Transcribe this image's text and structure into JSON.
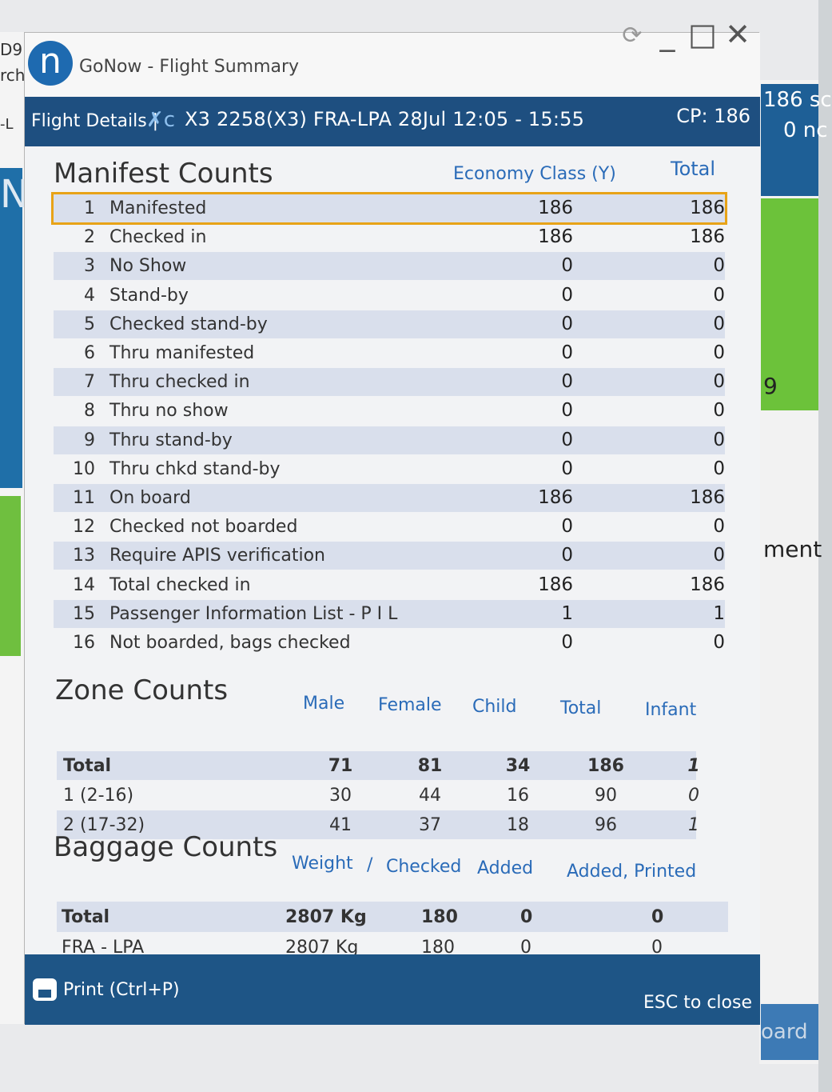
{
  "background": {
    "left_labels": [
      "D9",
      "rch",
      "-L",
      "N"
    ],
    "right_labels": [
      "186 sc",
      "0 nc",
      "9",
      "ment",
      "oard"
    ]
  },
  "window": {
    "logo_letter": "n",
    "title": "GoNow - Flight Summary",
    "controls": [
      "⟳",
      "_",
      "□",
      "✕"
    ]
  },
  "header": {
    "section": "Flight Details |",
    "airline_icon": "✗c",
    "flight": "X3 2258(X3)  FRA-LPA  28Jul 12:05 - 15:55",
    "cp": "CP: 186"
  },
  "manifest": {
    "title": "Manifest Counts",
    "col_class": "Economy Class (Y)",
    "col_total": "Total",
    "rows": [
      {
        "num": "1",
        "label": "Manifested",
        "y": "186",
        "total": "186"
      },
      {
        "num": "2",
        "label": "Checked in",
        "y": "186",
        "total": "186"
      },
      {
        "num": "3",
        "label": "No Show",
        "y": "0",
        "total": "0"
      },
      {
        "num": "4",
        "label": "Stand-by",
        "y": "0",
        "total": "0"
      },
      {
        "num": "5",
        "label": "Checked stand-by",
        "y": "0",
        "total": "0"
      },
      {
        "num": "6",
        "label": "Thru manifested",
        "y": "0",
        "total": "0"
      },
      {
        "num": "7",
        "label": "Thru checked in",
        "y": "0",
        "total": "0"
      },
      {
        "num": "8",
        "label": "Thru no show",
        "y": "0",
        "total": "0"
      },
      {
        "num": "9",
        "label": "Thru stand-by",
        "y": "0",
        "total": "0"
      },
      {
        "num": "10",
        "label": "Thru chkd stand-by",
        "y": "0",
        "total": "0"
      },
      {
        "num": "11",
        "label": "On board",
        "y": "186",
        "total": "186"
      },
      {
        "num": "12",
        "label": "Checked not boarded",
        "y": "0",
        "total": "0"
      },
      {
        "num": "13",
        "label": "Require APIS verification",
        "y": "0",
        "total": "0"
      },
      {
        "num": "14",
        "label": "Total checked in",
        "y": "186",
        "total": "186"
      },
      {
        "num": "15",
        "label": "Passenger Information List - P I L",
        "y": "1",
        "total": "1"
      },
      {
        "num": "16",
        "label": "Not boarded, bags checked",
        "y": "0",
        "total": "0"
      }
    ]
  },
  "zones": {
    "title": "Zone Counts",
    "headers": [
      "Male",
      "Female",
      "Child",
      "Total",
      "Infant"
    ],
    "rows": [
      {
        "label": "Total",
        "male": "71",
        "female": "81",
        "child": "34",
        "total": "186",
        "infant": "1"
      },
      {
        "label": "1 (2-16)",
        "male": "30",
        "female": "44",
        "child": "16",
        "total": "90",
        "infant": "0"
      },
      {
        "label": "2 (17-32)",
        "male": "41",
        "female": "37",
        "child": "18",
        "total": "96",
        "infant": "1"
      }
    ]
  },
  "baggage": {
    "title": "Baggage Counts",
    "headers": [
      "Weight",
      "/",
      "Checked",
      "Added",
      "Added, Printed"
    ],
    "rows": [
      {
        "label": "Total",
        "weight": "2807 Kg",
        "checked": "180",
        "added": "0",
        "printed": "0"
      },
      {
        "label": "FRA - LPA",
        "weight": "2807 Kg",
        "checked": "180",
        "added": "0",
        "printed": "0"
      }
    ]
  },
  "footer": {
    "print_label": "Print (Ctrl+P)",
    "esc_label": "ESC to close"
  }
}
